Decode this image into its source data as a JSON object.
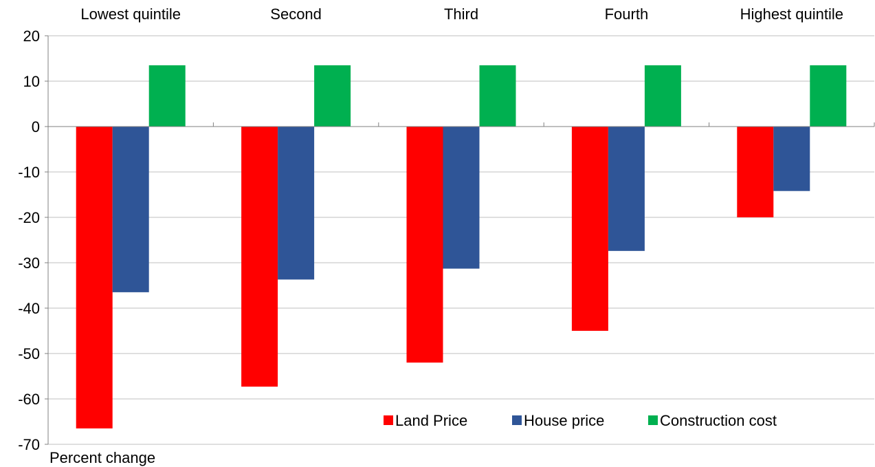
{
  "chart_data": {
    "type": "bar",
    "categories": [
      "Lowest quintile",
      "Second",
      "Third",
      "Fourth",
      "Highest quintile"
    ],
    "series": [
      {
        "name": "Land Price",
        "color": "#ff0000",
        "values": [
          -66.5,
          -57.3,
          -52.0,
          -45.0,
          -20.0
        ]
      },
      {
        "name": "House price",
        "color": "#2f5597",
        "values": [
          -36.5,
          -33.7,
          -31.3,
          -27.4,
          -14.2
        ]
      },
      {
        "name": "Construction cost",
        "color": "#00b050",
        "values": [
          13.5,
          13.5,
          13.5,
          13.5,
          13.5
        ]
      }
    ],
    "ylabel": "Percent change",
    "ylim": [
      -70,
      20
    ],
    "yticks": [
      20,
      10,
      0,
      -10,
      -20,
      -30,
      -40,
      -50,
      -60,
      -70
    ],
    "category_label_position": "top",
    "legend_position": "bottom-right",
    "grid": true
  }
}
